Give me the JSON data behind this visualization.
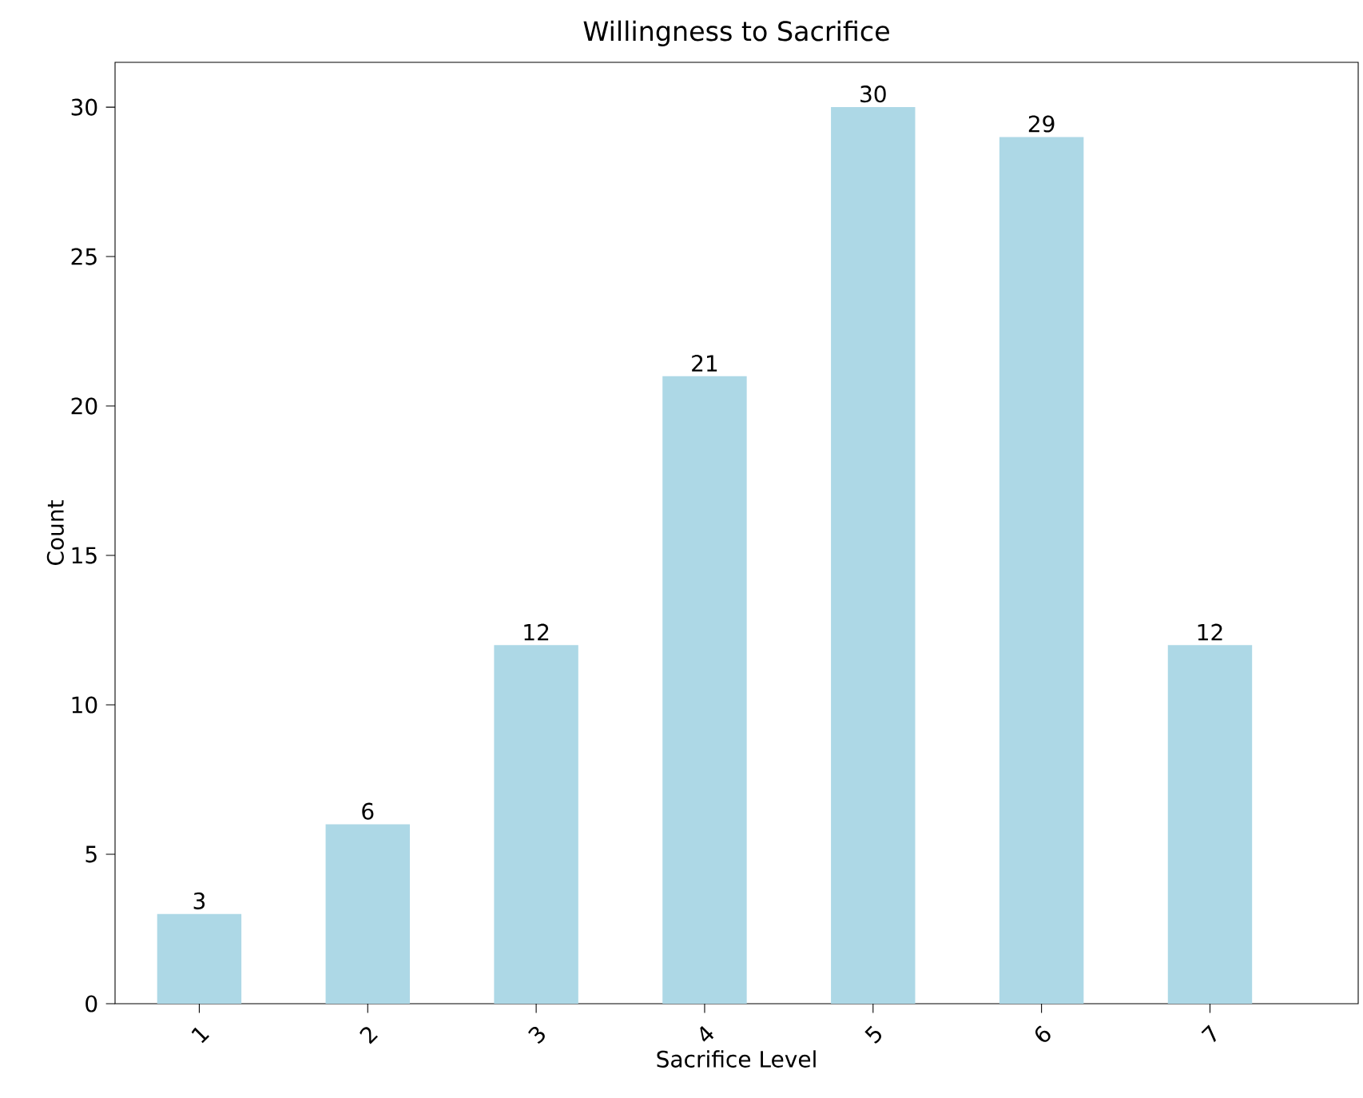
{
  "chart_data": {
    "type": "bar",
    "title": "Willingness to Sacrifice",
    "xlabel": "Sacrifice Level",
    "ylabel": "Count",
    "categories": [
      "1",
      "2",
      "3",
      "4",
      "5",
      "6",
      "7"
    ],
    "values": [
      3,
      6,
      12,
      21,
      30,
      29,
      12
    ],
    "color": "#add8e6",
    "ylim": [
      0,
      31.5
    ],
    "yticks": [
      0,
      5,
      10,
      15,
      20,
      25,
      30
    ],
    "data_labels": true
  }
}
